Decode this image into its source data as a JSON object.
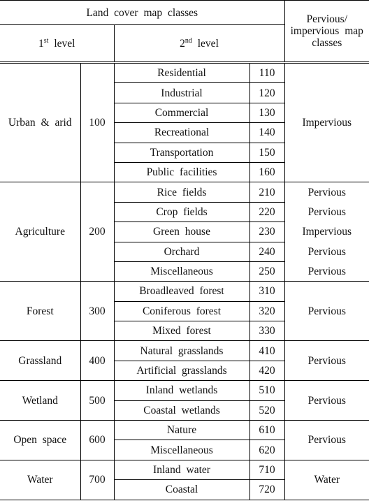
{
  "header": {
    "title": "Land cover map classes",
    "level1": {
      "number": "1",
      "suffix": "st",
      "text": "level"
    },
    "level2": {
      "number": "2",
      "suffix": "nd",
      "text": "level"
    },
    "pervious_title": "Pervious/ impervious map classes"
  },
  "groups": [
    {
      "name": "Urban & arid",
      "code": 100,
      "pervious": "Impervious",
      "classes": [
        {
          "name": "Residential",
          "code": 110
        },
        {
          "name": "Industrial",
          "code": 120
        },
        {
          "name": "Commercial",
          "code": 130
        },
        {
          "name": "Recreational",
          "code": 140
        },
        {
          "name": "Transportation",
          "code": 150
        },
        {
          "name": "Public facilities",
          "code": 160
        }
      ]
    },
    {
      "name": "Agriculture",
      "code": 200,
      "classes": [
        {
          "name": "Rice fields",
          "code": 210,
          "pervious": "Pervious"
        },
        {
          "name": "Crop fields",
          "code": 220,
          "pervious": "Pervious"
        },
        {
          "name": "Green house",
          "code": 230,
          "pervious": "Impervious"
        },
        {
          "name": "Orchard",
          "code": 240,
          "pervious": "Pervious"
        },
        {
          "name": "Miscellaneous",
          "code": 250,
          "pervious": "Pervious"
        }
      ]
    },
    {
      "name": "Forest",
      "code": 300,
      "pervious": "Pervious",
      "classes": [
        {
          "name": "Broadleaved forest",
          "code": 310
        },
        {
          "name": "Coniferous forest",
          "code": 320
        },
        {
          "name": "Mixed forest",
          "code": 330
        }
      ]
    },
    {
      "name": "Grassland",
      "code": 400,
      "pervious": "Pervious",
      "classes": [
        {
          "name": "Natural grasslands",
          "code": 410
        },
        {
          "name": "Artificial grasslands",
          "code": 420
        }
      ]
    },
    {
      "name": "Wetland",
      "code": 500,
      "pervious": "Pervious",
      "classes": [
        {
          "name": "Inland wetlands",
          "code": 510
        },
        {
          "name": "Coastal wetlands",
          "code": 520
        }
      ]
    },
    {
      "name": "Open space",
      "code": 600,
      "pervious": "Pervious",
      "classes": [
        {
          "name": "Nature",
          "code": 610
        },
        {
          "name": "Miscellaneous",
          "code": 620
        }
      ]
    },
    {
      "name": "Water",
      "code": 700,
      "pervious": "Water",
      "classes": [
        {
          "name": "Inland water",
          "code": 710
        },
        {
          "name": "Coastal",
          "code": 720
        }
      ]
    }
  ]
}
